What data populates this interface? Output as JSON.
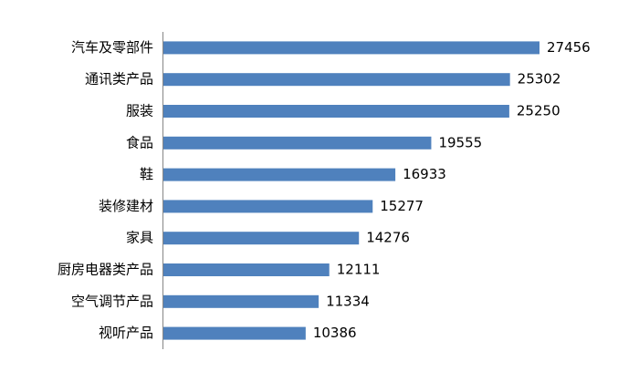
{
  "chart_data": {
    "type": "bar",
    "orientation": "horizontal",
    "categories": [
      "汽车及零部件",
      "通讯类产品",
      "服装",
      "食品",
      "鞋",
      "装修建材",
      "家具",
      "厨房电器类产品",
      "空气调节产品",
      "视听产品"
    ],
    "values": [
      27456,
      25302,
      25250,
      19555,
      16933,
      15277,
      14276,
      12111,
      11334,
      10386
    ],
    "color": "#4f81bd"
  }
}
